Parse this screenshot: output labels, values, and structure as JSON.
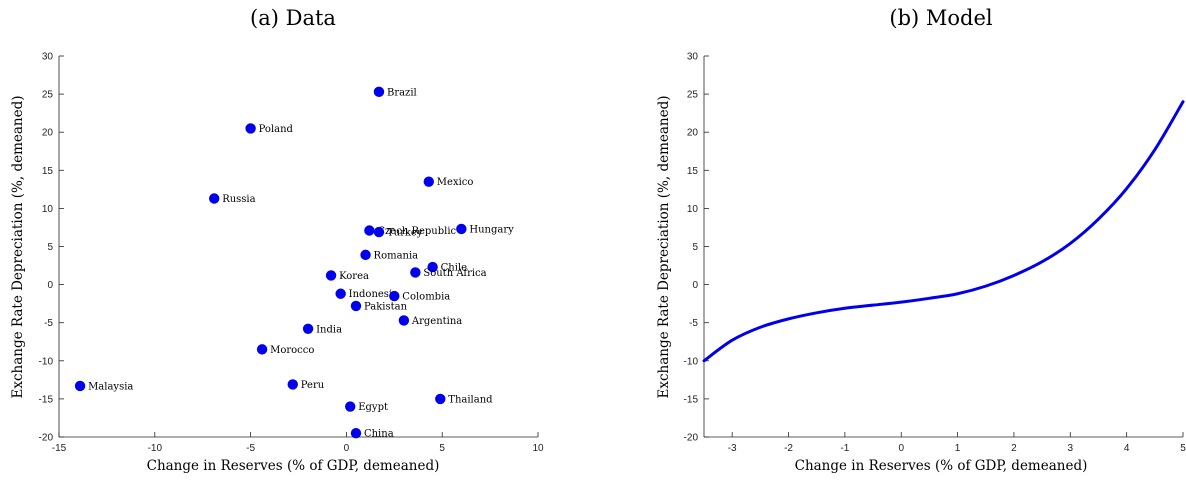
{
  "chart_data": [
    {
      "type": "scatter",
      "title": "(a) Data",
      "xlabel": "Change in Reserves (% of GDP, demeaned)",
      "ylabel": "Exchange Rate Depreciation (%, demeaned)",
      "xlim": [
        -15,
        10
      ],
      "ylim": [
        -20,
        30
      ],
      "xticks": [
        -15,
        -10,
        -5,
        0,
        5,
        10
      ],
      "yticks": [
        -20,
        -15,
        -10,
        -5,
        0,
        5,
        10,
        15,
        20,
        25,
        30
      ],
      "grid": false,
      "marker_color": "#0000ee",
      "points": [
        {
          "label": "Brazil",
          "x": 1.7,
          "y": 25.3
        },
        {
          "label": "Poland",
          "x": -5.0,
          "y": 20.5
        },
        {
          "label": "Mexico",
          "x": 4.3,
          "y": 13.5
        },
        {
          "label": "Russia",
          "x": -6.9,
          "y": 11.3
        },
        {
          "label": "Hungary",
          "x": 6.0,
          "y": 7.3
        },
        {
          "label": "Czech Republic",
          "x": 1.2,
          "y": 7.1
        },
        {
          "label": "Turkey",
          "x": 1.7,
          "y": 6.9
        },
        {
          "label": "Romania",
          "x": 1.0,
          "y": 3.9
        },
        {
          "label": "Chile",
          "x": 4.5,
          "y": 2.3
        },
        {
          "label": "South Africa",
          "x": 3.6,
          "y": 1.6
        },
        {
          "label": "Korea",
          "x": -0.8,
          "y": 1.2
        },
        {
          "label": "Indonesia",
          "x": -0.3,
          "y": -1.2
        },
        {
          "label": "Colombia",
          "x": 2.5,
          "y": -1.5
        },
        {
          "label": "Pakistan",
          "x": 0.5,
          "y": -2.8
        },
        {
          "label": "Argentina",
          "x": 3.0,
          "y": -4.7
        },
        {
          "label": "India",
          "x": -2.0,
          "y": -5.8
        },
        {
          "label": "Morocco",
          "x": -4.4,
          "y": -8.5
        },
        {
          "label": "Malaysia",
          "x": -13.9,
          "y": -13.3
        },
        {
          "label": "Peru",
          "x": -2.8,
          "y": -13.1
        },
        {
          "label": "Thailand",
          "x": 4.9,
          "y": -15.0
        },
        {
          "label": "Egypt",
          "x": 0.2,
          "y": -16.0
        },
        {
          "label": "China",
          "x": 0.5,
          "y": -19.5
        }
      ]
    },
    {
      "type": "line",
      "title": "(b) Model",
      "xlabel": "Change in Reserves (% of GDP, demeaned)",
      "ylabel": "Exchange Rate Depreciation (%, demeaned)",
      "xlim": [
        -3.5,
        5
      ],
      "ylim": [
        -20,
        30
      ],
      "xticks": [
        -3,
        -2,
        -1,
        0,
        1,
        2,
        3,
        4,
        5
      ],
      "yticks": [
        -20,
        -15,
        -10,
        -5,
        0,
        5,
        10,
        15,
        20,
        25,
        30
      ],
      "grid": false,
      "line_color": "#0000ee",
      "x": [
        -3.5,
        -3,
        -2.5,
        -2,
        -1.5,
        -1,
        -0.5,
        0,
        0.5,
        1,
        1.5,
        2,
        2.5,
        3,
        3.5,
        4,
        4.5,
        5
      ],
      "y": [
        -10.0,
        -7.3,
        -5.6,
        -4.5,
        -3.7,
        -3.1,
        -2.7,
        -2.3,
        -1.8,
        -1.2,
        -0.2,
        1.2,
        3.0,
        5.4,
        8.6,
        12.6,
        17.7,
        24.0
      ]
    }
  ]
}
